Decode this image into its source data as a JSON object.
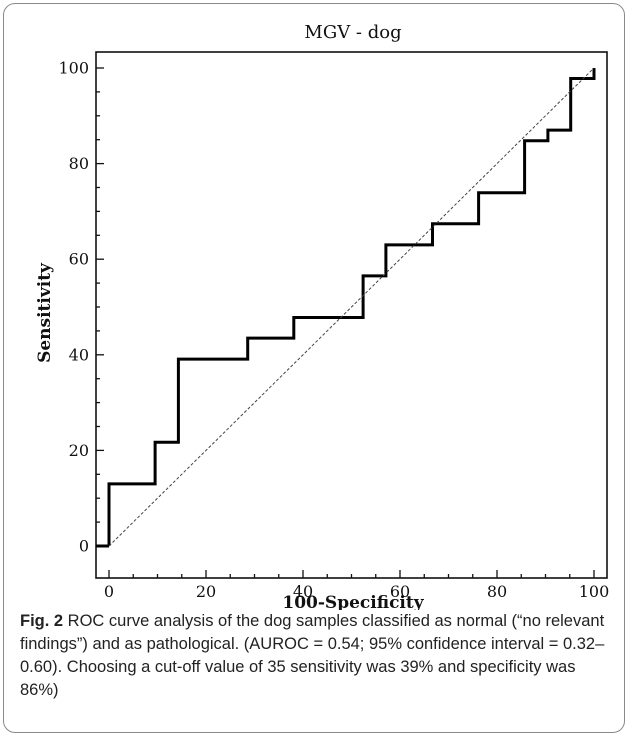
{
  "chart_data": {
    "type": "line",
    "title": "MGV - dog",
    "xlabel": "100-Specificity",
    "ylabel": "Sensitivity",
    "xlim": [
      0,
      100
    ],
    "ylim": [
      0,
      100
    ],
    "xticks": [
      0,
      20,
      40,
      60,
      80,
      100
    ],
    "yticks": [
      0,
      20,
      40,
      60,
      80,
      100
    ],
    "grid": false,
    "legend": "none",
    "series": [
      {
        "kind": "step",
        "color": "#000000",
        "x": [
          0,
          0,
          9.5,
          9.5,
          14.3,
          14.3,
          28.6,
          28.6,
          38.1,
          38.1,
          52.4,
          52.4,
          57.1,
          57.1,
          66.7,
          66.7,
          76.2,
          76.2,
          85.7,
          85.7,
          90.5,
          90.5,
          95.2,
          95.2,
          100,
          100
        ],
        "y": [
          0,
          13.0,
          13.0,
          21.7,
          21.7,
          39.1,
          39.1,
          43.5,
          43.5,
          47.8,
          47.8,
          56.5,
          56.5,
          63.0,
          63.0,
          67.4,
          67.4,
          73.9,
          73.9,
          84.8,
          84.8,
          87.0,
          87.0,
          97.8,
          97.8,
          100
        ]
      },
      {
        "kind": "diagonal",
        "color": "#444444",
        "x": [
          0,
          100
        ],
        "y": [
          0,
          100
        ]
      }
    ]
  },
  "caption": {
    "label": "Fig. 2",
    "text": " ROC curve analysis of the dog samples classified as normal (“no relevant findings”) and as pathological. (AUROC = 0.54; 95% confidence interval = 0.32–0.60). Choosing a cut-off value of 35 sensitivity was 39% and specificity was 86%)"
  }
}
